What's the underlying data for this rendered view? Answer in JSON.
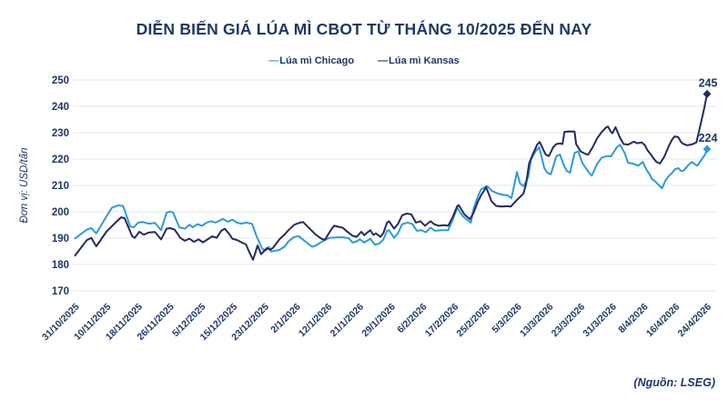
{
  "page": {
    "title": "DIỄN BIẾN GIÁ LÚA MÌ CBOT TỪ THÁNG 10/2025 ĐẾN NAY",
    "source_note": "(Nguồn: LSEG)"
  },
  "legend": {
    "items": [
      {
        "label": "Lúa mì Chicago",
        "dash": "—",
        "color": "#2E9BD9"
      },
      {
        "label": "Lúa mì Kansas",
        "dash": "—",
        "color": "#232C5F"
      }
    ]
  },
  "colors": {
    "text": "#1F3864",
    "grid": "#E7E7E7",
    "background": "#FFFFFF"
  },
  "chart_data": {
    "type": "line",
    "title": "DIỄN BIẾN GIÁ LÚA MÌ CBOT TỪ THÁNG 10/2025 ĐẾN NAY",
    "ylabel": "Đơn vị: USD/tấn",
    "ylim": [
      170,
      250
    ],
    "yticks": [
      170,
      180,
      190,
      200,
      210,
      220,
      230,
      240,
      250
    ],
    "grid": "horizontal",
    "legend_position": "top-center",
    "x_index_range": [
      0,
      125
    ],
    "x_tick_labels": [
      "31/10/2025",
      "10/11/2025",
      "18/11/2025",
      "26/11/2025",
      "5/12/2025",
      "15/12/2025",
      "23/12/2025",
      "2/1/2026",
      "12/1/2026",
      "21/1/2026",
      "29/1/2026",
      "6/2/2026",
      "17/2/2026",
      "25/2/2026",
      "5/3/2026",
      "13/3/2026",
      "23/3/2026",
      "31/3/2026",
      "8/4/2026",
      "16/4/2026",
      "24/4/2026"
    ],
    "series": [
      {
        "name": "Lúa mì Chicago",
        "color": "#2E9BD9",
        "end_value_label": "224",
        "points": [
          [
            0,
            189.9
          ],
          [
            2.3,
            193.2
          ],
          [
            3.2,
            193.8
          ],
          [
            4.2,
            191.8
          ],
          [
            6.2,
            198.2
          ],
          [
            7.3,
            201.6
          ],
          [
            8.6,
            202.5
          ],
          [
            9.5,
            202.2
          ],
          [
            10.9,
            194.4
          ],
          [
            11.6,
            194.1
          ],
          [
            12.5,
            195.9
          ],
          [
            13.4,
            196.1
          ],
          [
            14.5,
            195.5
          ],
          [
            15.8,
            195.8
          ],
          [
            17,
            193
          ],
          [
            18.1,
            199.7
          ],
          [
            18.8,
            200.1
          ],
          [
            19.4,
            199.7
          ],
          [
            20.6,
            194.1
          ],
          [
            21.7,
            193.6
          ],
          [
            22.6,
            195.1
          ],
          [
            23.3,
            194.1
          ],
          [
            24.2,
            195.3
          ],
          [
            25.1,
            194.7
          ],
          [
            26,
            195.9
          ],
          [
            26.9,
            196.4
          ],
          [
            27.8,
            195.9
          ],
          [
            29.3,
            197.3
          ],
          [
            30.2,
            196.2
          ],
          [
            31.1,
            197
          ],
          [
            32,
            195.9
          ],
          [
            32.9,
            195.5
          ],
          [
            33.8,
            195.9
          ],
          [
            35,
            195.4
          ],
          [
            35.9,
            190.7
          ],
          [
            37,
            186
          ],
          [
            37.7,
            185.2
          ],
          [
            38.3,
            186.7
          ],
          [
            38.8,
            184.9
          ],
          [
            39.7,
            185.3
          ],
          [
            40.4,
            185.5
          ],
          [
            41.5,
            186.9
          ],
          [
            42.2,
            188.8
          ],
          [
            43.3,
            190.4
          ],
          [
            44.2,
            190.8
          ],
          [
            45.5,
            188.8
          ],
          [
            46.4,
            187.5
          ],
          [
            46.9,
            186.7
          ],
          [
            47.6,
            187.2
          ],
          [
            48.7,
            188.5
          ],
          [
            49.4,
            189.3
          ],
          [
            50.3,
            190.1
          ],
          [
            51.8,
            190.3
          ],
          [
            53,
            190.3
          ],
          [
            54.1,
            190
          ],
          [
            54.9,
            188.3
          ],
          [
            55.7,
            188.8
          ],
          [
            56.3,
            189.6
          ],
          [
            57.2,
            188.3
          ],
          [
            58.4,
            189.8
          ],
          [
            59.3,
            187.5
          ],
          [
            60.2,
            188
          ],
          [
            61,
            189.5
          ],
          [
            61.7,
            192.8
          ],
          [
            62.1,
            193
          ],
          [
            63.1,
            190.1
          ],
          [
            63.9,
            192
          ],
          [
            64.7,
            195.3
          ],
          [
            65.8,
            195.9
          ],
          [
            66.7,
            195.3
          ],
          [
            67.6,
            192.8
          ],
          [
            68.5,
            193
          ],
          [
            69.4,
            192.2
          ],
          [
            70.3,
            194
          ],
          [
            71.2,
            192.8
          ],
          [
            72.5,
            193
          ],
          [
            73.8,
            193
          ],
          [
            74.7,
            197
          ],
          [
            75.6,
            201.5
          ],
          [
            76.6,
            198.5
          ],
          [
            77.5,
            197
          ],
          [
            78.3,
            195.9
          ],
          [
            78.8,
            201
          ],
          [
            79.5,
            205
          ],
          [
            80.3,
            208.5
          ],
          [
            81.5,
            209.8
          ],
          [
            82.4,
            208
          ],
          [
            83.5,
            207
          ],
          [
            84.4,
            206.5
          ],
          [
            85.6,
            206.2
          ],
          [
            86.3,
            205.1
          ],
          [
            87.4,
            215.1
          ],
          [
            88,
            210.8
          ],
          [
            88.7,
            209.7
          ],
          [
            89.6,
            213
          ],
          [
            90.2,
            220
          ],
          [
            91.1,
            223
          ],
          [
            91.8,
            224.5
          ],
          [
            92.8,
            216.6
          ],
          [
            93.4,
            214.8
          ],
          [
            94.1,
            214.2
          ],
          [
            95.2,
            221.1
          ],
          [
            95.9,
            221.7
          ],
          [
            96.8,
            217.1
          ],
          [
            97.3,
            215.4
          ],
          [
            97.9,
            214.8
          ],
          [
            98.8,
            222.3
          ],
          [
            99.5,
            222.9
          ],
          [
            100.4,
            218.3
          ],
          [
            101,
            216.6
          ],
          [
            101.9,
            214.2
          ],
          [
            102.2,
            213.7
          ],
          [
            103.3,
            218.3
          ],
          [
            104.2,
            220.6
          ],
          [
            105.1,
            221.1
          ],
          [
            106,
            221
          ],
          [
            107.2,
            224.6
          ],
          [
            107.8,
            225.4
          ],
          [
            108.7,
            222.3
          ],
          [
            109.4,
            218.5
          ],
          [
            110.3,
            218.3
          ],
          [
            111.4,
            217.5
          ],
          [
            112.3,
            218.9
          ],
          [
            113,
            216
          ],
          [
            113.6,
            214.3
          ],
          [
            114.1,
            212.5
          ],
          [
            114.8,
            211.4
          ],
          [
            115.4,
            210.2
          ],
          [
            116.1,
            208.9
          ],
          [
            116.8,
            212
          ],
          [
            117.5,
            213.7
          ],
          [
            118.1,
            214.8
          ],
          [
            118.6,
            216
          ],
          [
            119.3,
            216.6
          ],
          [
            119.9,
            215.4
          ],
          [
            120.4,
            215.7
          ],
          [
            121.3,
            217.7
          ],
          [
            122,
            218.9
          ],
          [
            122.6,
            218
          ],
          [
            123.1,
            217.5
          ],
          [
            124,
            220
          ],
          [
            124.6,
            221.7
          ],
          [
            125,
            223.8
          ]
        ]
      },
      {
        "name": "Lúa mì Kansas",
        "color": "#232C5F",
        "end_value_label": "245",
        "points": [
          [
            0,
            183.4
          ],
          [
            2.3,
            189.2
          ],
          [
            3.2,
            190.1
          ],
          [
            4.2,
            186.9
          ],
          [
            6.2,
            192.4
          ],
          [
            8,
            195.9
          ],
          [
            9.1,
            197.9
          ],
          [
            9.8,
            197.6
          ],
          [
            11.3,
            190.7
          ],
          [
            11.8,
            190.1
          ],
          [
            12.7,
            192.4
          ],
          [
            13.6,
            191.3
          ],
          [
            14.5,
            192.1
          ],
          [
            15.8,
            192.3
          ],
          [
            17,
            189.5
          ],
          [
            18.1,
            193.6
          ],
          [
            18.8,
            193.8
          ],
          [
            19.7,
            193.2
          ],
          [
            20.8,
            190.1
          ],
          [
            21.7,
            189
          ],
          [
            22.6,
            189.8
          ],
          [
            23.5,
            188.6
          ],
          [
            24.4,
            189.5
          ],
          [
            25.3,
            188.4
          ],
          [
            26.2,
            189.5
          ],
          [
            27.1,
            190.7
          ],
          [
            28,
            190.1
          ],
          [
            28.9,
            192.8
          ],
          [
            29.6,
            193.6
          ],
          [
            30.5,
            191.5
          ],
          [
            31.1,
            189.8
          ],
          [
            32,
            189.3
          ],
          [
            32.9,
            188.4
          ],
          [
            33.8,
            187.6
          ],
          [
            34.5,
            184.5
          ],
          [
            35.2,
            181.8
          ],
          [
            36.1,
            187.2
          ],
          [
            36.8,
            183.9
          ],
          [
            37.9,
            186.2
          ],
          [
            38.6,
            185.6
          ],
          [
            39.2,
            186.4
          ],
          [
            40.4,
            189.5
          ],
          [
            41.5,
            191.5
          ],
          [
            42.2,
            193
          ],
          [
            43.3,
            195
          ],
          [
            44,
            195.6
          ],
          [
            44.6,
            195.9
          ],
          [
            45.1,
            196.1
          ],
          [
            46.4,
            193.6
          ],
          [
            47.6,
            191.3
          ],
          [
            48.7,
            189.8
          ],
          [
            49.4,
            189.3
          ],
          [
            50.5,
            192.8
          ],
          [
            51.2,
            194.7
          ],
          [
            52.1,
            194.3
          ],
          [
            53,
            193.9
          ],
          [
            53.6,
            192.8
          ],
          [
            54.9,
            190.9
          ],
          [
            55.7,
            190.5
          ],
          [
            56.6,
            192.4
          ],
          [
            57.2,
            191.1
          ],
          [
            57.7,
            192
          ],
          [
            58.4,
            193
          ],
          [
            59,
            191.2
          ],
          [
            59.5,
            191.8
          ],
          [
            60.4,
            190.5
          ],
          [
            61,
            192
          ],
          [
            61.7,
            195.9
          ],
          [
            62.1,
            196.4
          ],
          [
            63.1,
            193.6
          ],
          [
            63.9,
            195.5
          ],
          [
            64.7,
            198.7
          ],
          [
            65.6,
            199.3
          ],
          [
            66.5,
            199
          ],
          [
            67.4,
            195.9
          ],
          [
            68.3,
            196.4
          ],
          [
            69.2,
            194.7
          ],
          [
            70.3,
            196.4
          ],
          [
            71,
            195.3
          ],
          [
            71.9,
            194.7
          ],
          [
            73,
            194.9
          ],
          [
            73.8,
            194.7
          ],
          [
            74.7,
            198
          ],
          [
            75.6,
            202.2
          ],
          [
            75.9,
            202.5
          ],
          [
            77,
            199
          ],
          [
            78.1,
            197.2
          ],
          [
            78.8,
            199.5
          ],
          [
            79.7,
            204
          ],
          [
            80.3,
            206.2
          ],
          [
            81.3,
            209.3
          ],
          [
            82.4,
            203.9
          ],
          [
            83.3,
            202.2
          ],
          [
            84.4,
            202
          ],
          [
            85.3,
            202.1
          ],
          [
            86.2,
            202
          ],
          [
            86.9,
            203.5
          ],
          [
            87.4,
            204.5
          ],
          [
            88,
            205.6
          ],
          [
            88.7,
            207
          ],
          [
            89.2,
            210.5
          ],
          [
            89.8,
            218.3
          ],
          [
            90.5,
            221.7
          ],
          [
            91.4,
            225.5
          ],
          [
            91.9,
            226.5
          ],
          [
            92.8,
            222.8
          ],
          [
            93.1,
            221.7
          ],
          [
            93.7,
            221.1
          ],
          [
            94.6,
            224.6
          ],
          [
            95.2,
            225.7
          ],
          [
            95.9,
            225.9
          ],
          [
            96.4,
            225.7
          ],
          [
            96.8,
            230.3
          ],
          [
            97.7,
            230.5
          ],
          [
            98.8,
            230.4
          ],
          [
            99.1,
            225.7
          ],
          [
            100,
            222.9
          ],
          [
            101,
            221.9
          ],
          [
            101.5,
            221.7
          ],
          [
            102.4,
            224.6
          ],
          [
            103.3,
            228
          ],
          [
            104.2,
            230.3
          ],
          [
            105.1,
            232.1
          ],
          [
            105.4,
            232.3
          ],
          [
            106,
            230.3
          ],
          [
            106.3,
            229.8
          ],
          [
            106.9,
            232.1
          ],
          [
            107.8,
            228
          ],
          [
            108.5,
            225.7
          ],
          [
            109.4,
            225.5
          ],
          [
            110.5,
            226.6
          ],
          [
            111.2,
            226
          ],
          [
            112.1,
            226.3
          ],
          [
            112.7,
            225.2
          ],
          [
            113.2,
            223.4
          ],
          [
            113.9,
            221.7
          ],
          [
            114.5,
            220
          ],
          [
            115,
            218.9
          ],
          [
            115.7,
            218.3
          ],
          [
            116.6,
            221.1
          ],
          [
            117.5,
            225.2
          ],
          [
            118.1,
            227.5
          ],
          [
            118.6,
            228.6
          ],
          [
            119.3,
            228.3
          ],
          [
            119.9,
            226.3
          ],
          [
            120.4,
            225.7
          ],
          [
            121.1,
            225.2
          ],
          [
            122.2,
            225.7
          ],
          [
            122.9,
            226.3
          ],
          [
            123.8,
            233.8
          ],
          [
            124.4,
            239
          ],
          [
            125,
            244.7
          ]
        ]
      }
    ]
  }
}
